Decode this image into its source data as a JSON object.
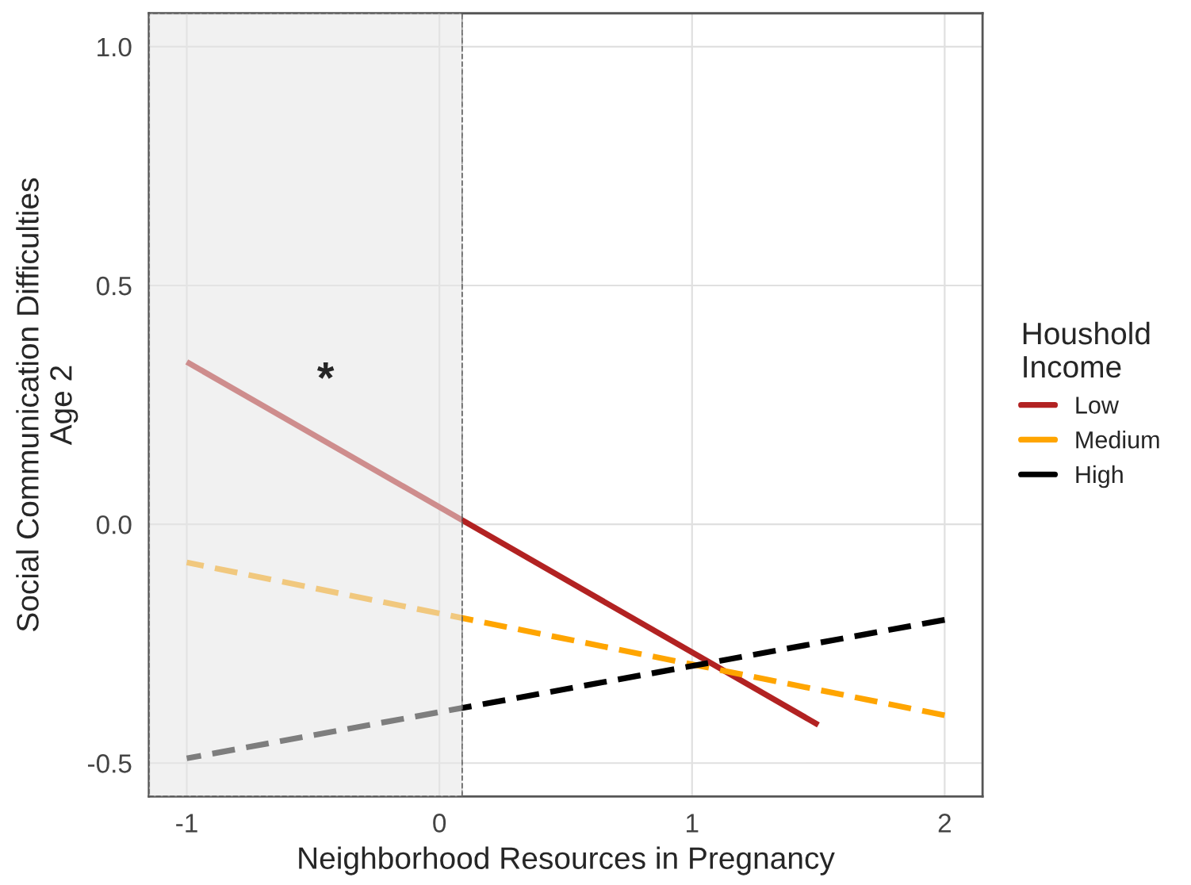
{
  "chart_data": {
    "type": "line",
    "xlabel": "Neighborhood Resources in Pregnancy",
    "ylabel": "Social Communication Difficulties\nAge 2",
    "legend_title": "Houshold\nIncome",
    "series": [
      {
        "name": "Low",
        "color": "#b22222",
        "line_style": "solid",
        "x": [
          -1,
          1.5
        ],
        "values": [
          0.34,
          -0.42
        ]
      },
      {
        "name": "Medium",
        "color": "#ffa500",
        "line_style": "dashed",
        "x": [
          -1,
          2
        ],
        "values": [
          -0.08,
          -0.4
        ]
      },
      {
        "name": "High",
        "color": "#000000",
        "line_style": "dashed",
        "x": [
          -1,
          2
        ],
        "values": [
          -0.49,
          -0.2
        ]
      }
    ],
    "xlim": [
      -1.15,
      2.15
    ],
    "xticks": [
      -1,
      0,
      1,
      2
    ],
    "ylim": [
      -0.57,
      1.07
    ],
    "yticks": [
      {
        "value": -0.5,
        "label": "-0.5"
      },
      {
        "value": 0,
        "label": "0.0"
      },
      {
        "value": 0.5,
        "label": "0.5"
      },
      {
        "value": 1,
        "label": "1.0"
      }
    ],
    "bands": [
      {
        "axis": "x",
        "from": -1.15,
        "to": 0.09,
        "color": "#e6e6e6"
      }
    ],
    "ref_lines": [
      {
        "axis": "x",
        "value": 0.09,
        "line_style": "dashed",
        "color": "#666666"
      }
    ],
    "annotations": [
      "*"
    ],
    "grid": true,
    "legend": "right",
    "marker": "none"
  }
}
